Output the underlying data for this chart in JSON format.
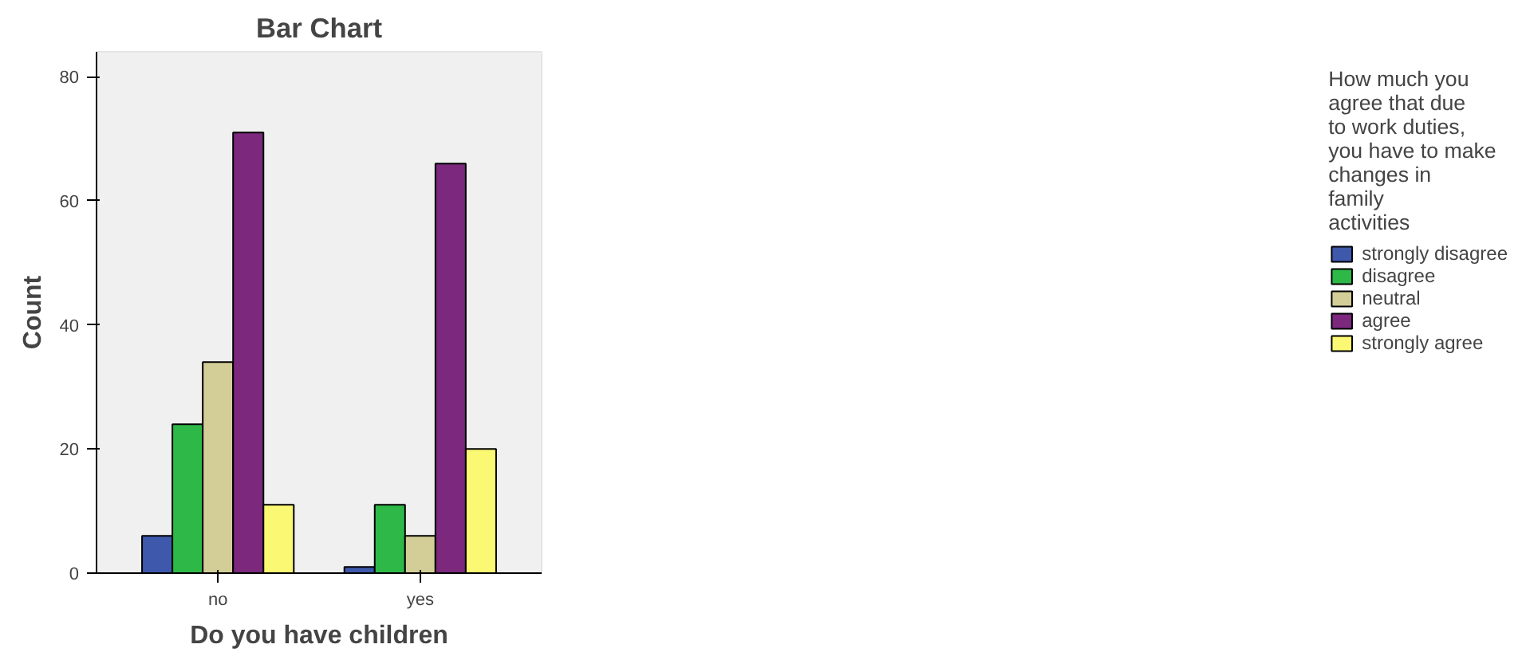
{
  "chart_data": {
    "type": "bar",
    "title": "Bar Chart",
    "xlabel": "Do you have children",
    "ylabel": "Count",
    "legend_title": "How much you agree that due to work duties, you have to make changes in family activities",
    "categories": [
      "no",
      "yes"
    ],
    "series": [
      {
        "name": "strongly disagree",
        "color": "#3e58ac",
        "values": [
          6,
          1
        ]
      },
      {
        "name": "disagree",
        "color": "#2eb848",
        "values": [
          24,
          11
        ]
      },
      {
        "name": "neutral",
        "color": "#d3ce97",
        "values": [
          34,
          6
        ]
      },
      {
        "name": "agree",
        "color": "#7b287d",
        "values": [
          71,
          66
        ]
      },
      {
        "name": "strongly agree",
        "color": "#fbf873",
        "values": [
          11,
          20
        ]
      }
    ],
    "ylim": [
      0,
      84
    ],
    "yticks": [
      0,
      20,
      40,
      60,
      80
    ],
    "grid": false,
    "legend": "right"
  }
}
